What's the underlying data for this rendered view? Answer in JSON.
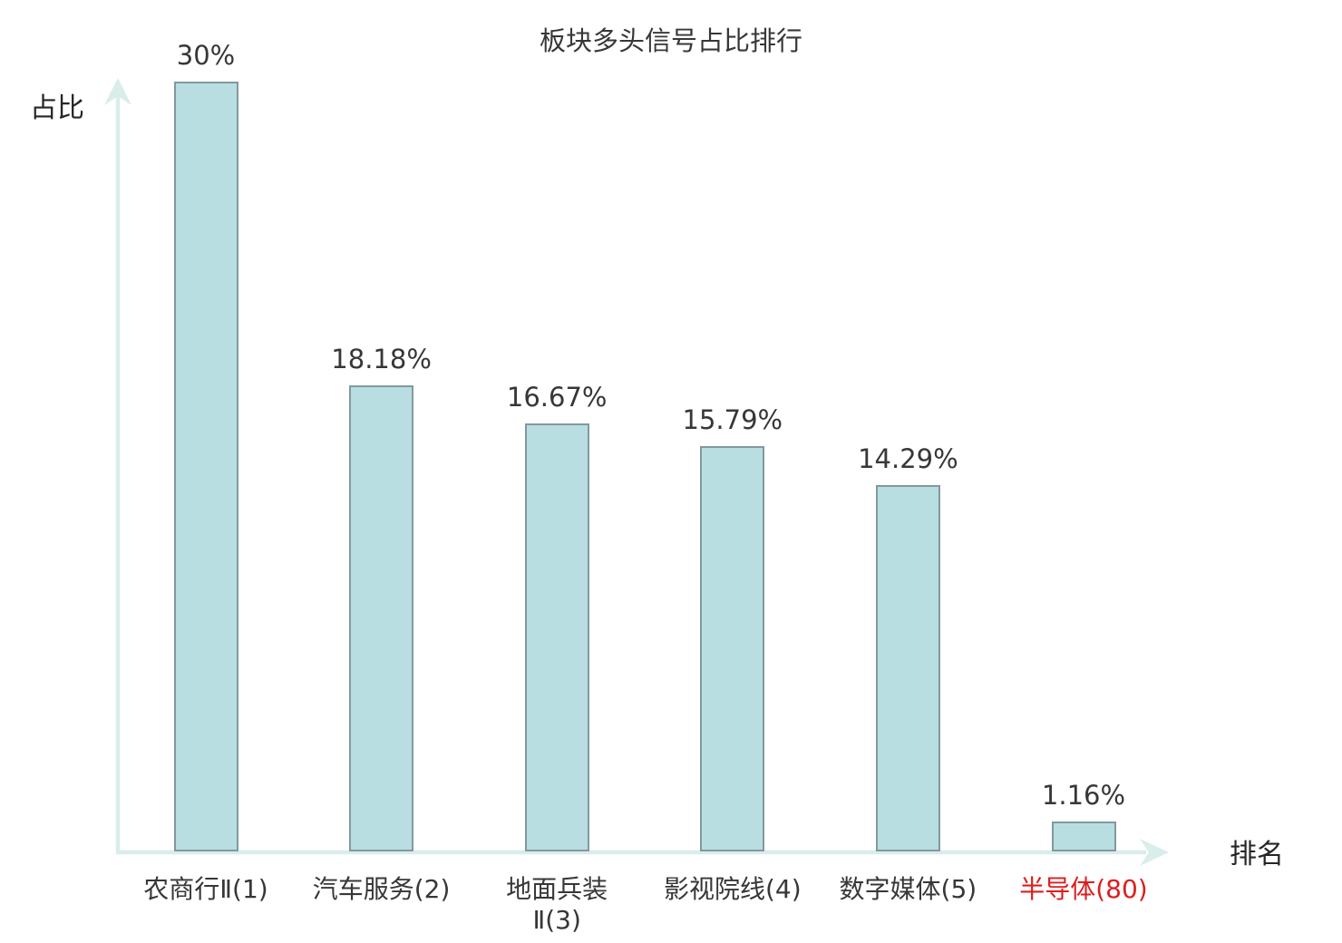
{
  "chart_data": {
    "type": "bar",
    "title": "板块多头信号占比排行",
    "xlabel": "排名",
    "ylabel": "占比",
    "categories": [
      "农商行Ⅱ(1)",
      "汽车服务(2)",
      "地面兵装Ⅱ(3)",
      "影视院线(4)",
      "数字媒体(5)",
      "半导体(80)"
    ],
    "category_display": [
      "农商行Ⅱ(1)",
      "汽车服务(2)",
      "地面兵装\nⅡ(3)",
      "影视院线(4)",
      "数字媒体(5)",
      "半导体(80)"
    ],
    "values": [
      30,
      18.18,
      16.67,
      15.79,
      14.29,
      1.16
    ],
    "value_labels": [
      "30%",
      "18.18%",
      "16.67%",
      "15.79%",
      "14.29%",
      "1.16%"
    ],
    "highlighted_category_index": 5,
    "highlight_color": "#dd1e1e",
    "ylim": [
      0,
      30
    ],
    "grid": false,
    "legend": null,
    "bar_color": "#b9dee2",
    "bar_border_color": "#82999e",
    "axis_color": "#d9edea",
    "text_color": "#373737"
  }
}
